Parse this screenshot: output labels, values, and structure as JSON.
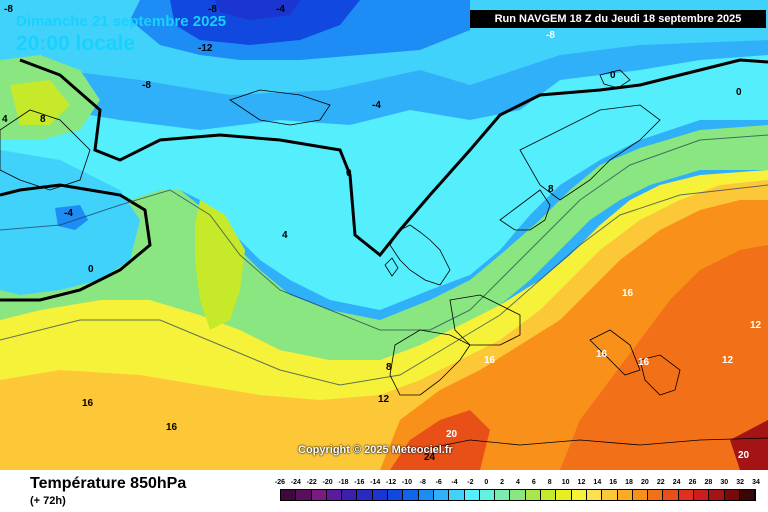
{
  "header": {
    "date": "Dimanche 21 septembre 2025",
    "time": "20:00 locale",
    "run": "Run NAVGEM 18 Z du Jeudi 18 septembre 2025"
  },
  "copyright": "Copyright © 2025 Meteociel.fr",
  "footer": {
    "parameter": "Température 850hPa",
    "lead": "(+ 72h)"
  },
  "scale": {
    "labels": [
      "-26",
      "-24",
      "-22",
      "-20",
      "-18",
      "-16",
      "-14",
      "-12",
      "-10",
      "-8",
      "-6",
      "-4",
      "-2",
      "0",
      "2",
      "4",
      "6",
      "8",
      "10",
      "12",
      "14",
      "16",
      "18",
      "20",
      "22",
      "24",
      "26",
      "28",
      "30",
      "32",
      "34"
    ],
    "colors": [
      "#3d0a3a",
      "#5a0f5c",
      "#7a1a82",
      "#5c1a9c",
      "#3d1fae",
      "#2a2ac0",
      "#1a35d0",
      "#1048e0",
      "#0f64f0",
      "#1e8cf5",
      "#30b0f8",
      "#40d2fb",
      "#55eefc",
      "#63f2e0",
      "#7aecb0",
      "#8ae680",
      "#a8e64a",
      "#c6ea2a",
      "#e6f020",
      "#f6f23a",
      "#fce050",
      "#fcc838",
      "#fbaa22",
      "#f8901a",
      "#f27018",
      "#e85018",
      "#e03020",
      "#cc1c20",
      "#a51414",
      "#7a0a0a",
      "#3a0606"
    ]
  },
  "map_labels": [
    {
      "text": "-8",
      "fill": "dark"
    },
    {
      "text": "-8",
      "fill": "dark"
    },
    {
      "text": "-4",
      "fill": "dark"
    },
    {
      "text": "-12",
      "fill": "light"
    },
    {
      "text": "-8",
      "fill": "light"
    },
    {
      "text": "-8",
      "fill": "light"
    },
    {
      "text": "0",
      "fill": "light"
    },
    {
      "text": "0",
      "fill": "light"
    },
    {
      "text": "4",
      "fill": "dark"
    },
    {
      "text": "8",
      "fill": "dark"
    },
    {
      "text": "-4",
      "fill": "dark"
    },
    {
      "text": "-4",
      "fill": "dark"
    },
    {
      "text": "0",
      "fill": "dark"
    },
    {
      "text": "0",
      "fill": "dark"
    },
    {
      "text": "4",
      "fill": "dark"
    },
    {
      "text": "8",
      "fill": "dark"
    },
    {
      "text": "12",
      "fill": "dark"
    },
    {
      "text": "16",
      "fill": "dark"
    },
    {
      "text": "16",
      "fill": "dark"
    },
    {
      "text": "8",
      "fill": "dark"
    },
    {
      "text": "16",
      "fill": "light"
    },
    {
      "text": "16",
      "fill": "light"
    },
    {
      "text": "16",
      "fill": "light"
    },
    {
      "text": "16",
      "fill": "light"
    },
    {
      "text": "12",
      "fill": "light"
    },
    {
      "text": "12",
      "fill": "light"
    },
    {
      "text": "20",
      "fill": "light"
    },
    {
      "text": "24",
      "fill": "dark"
    },
    {
      "text": "20",
      "fill": "light"
    }
  ]
}
